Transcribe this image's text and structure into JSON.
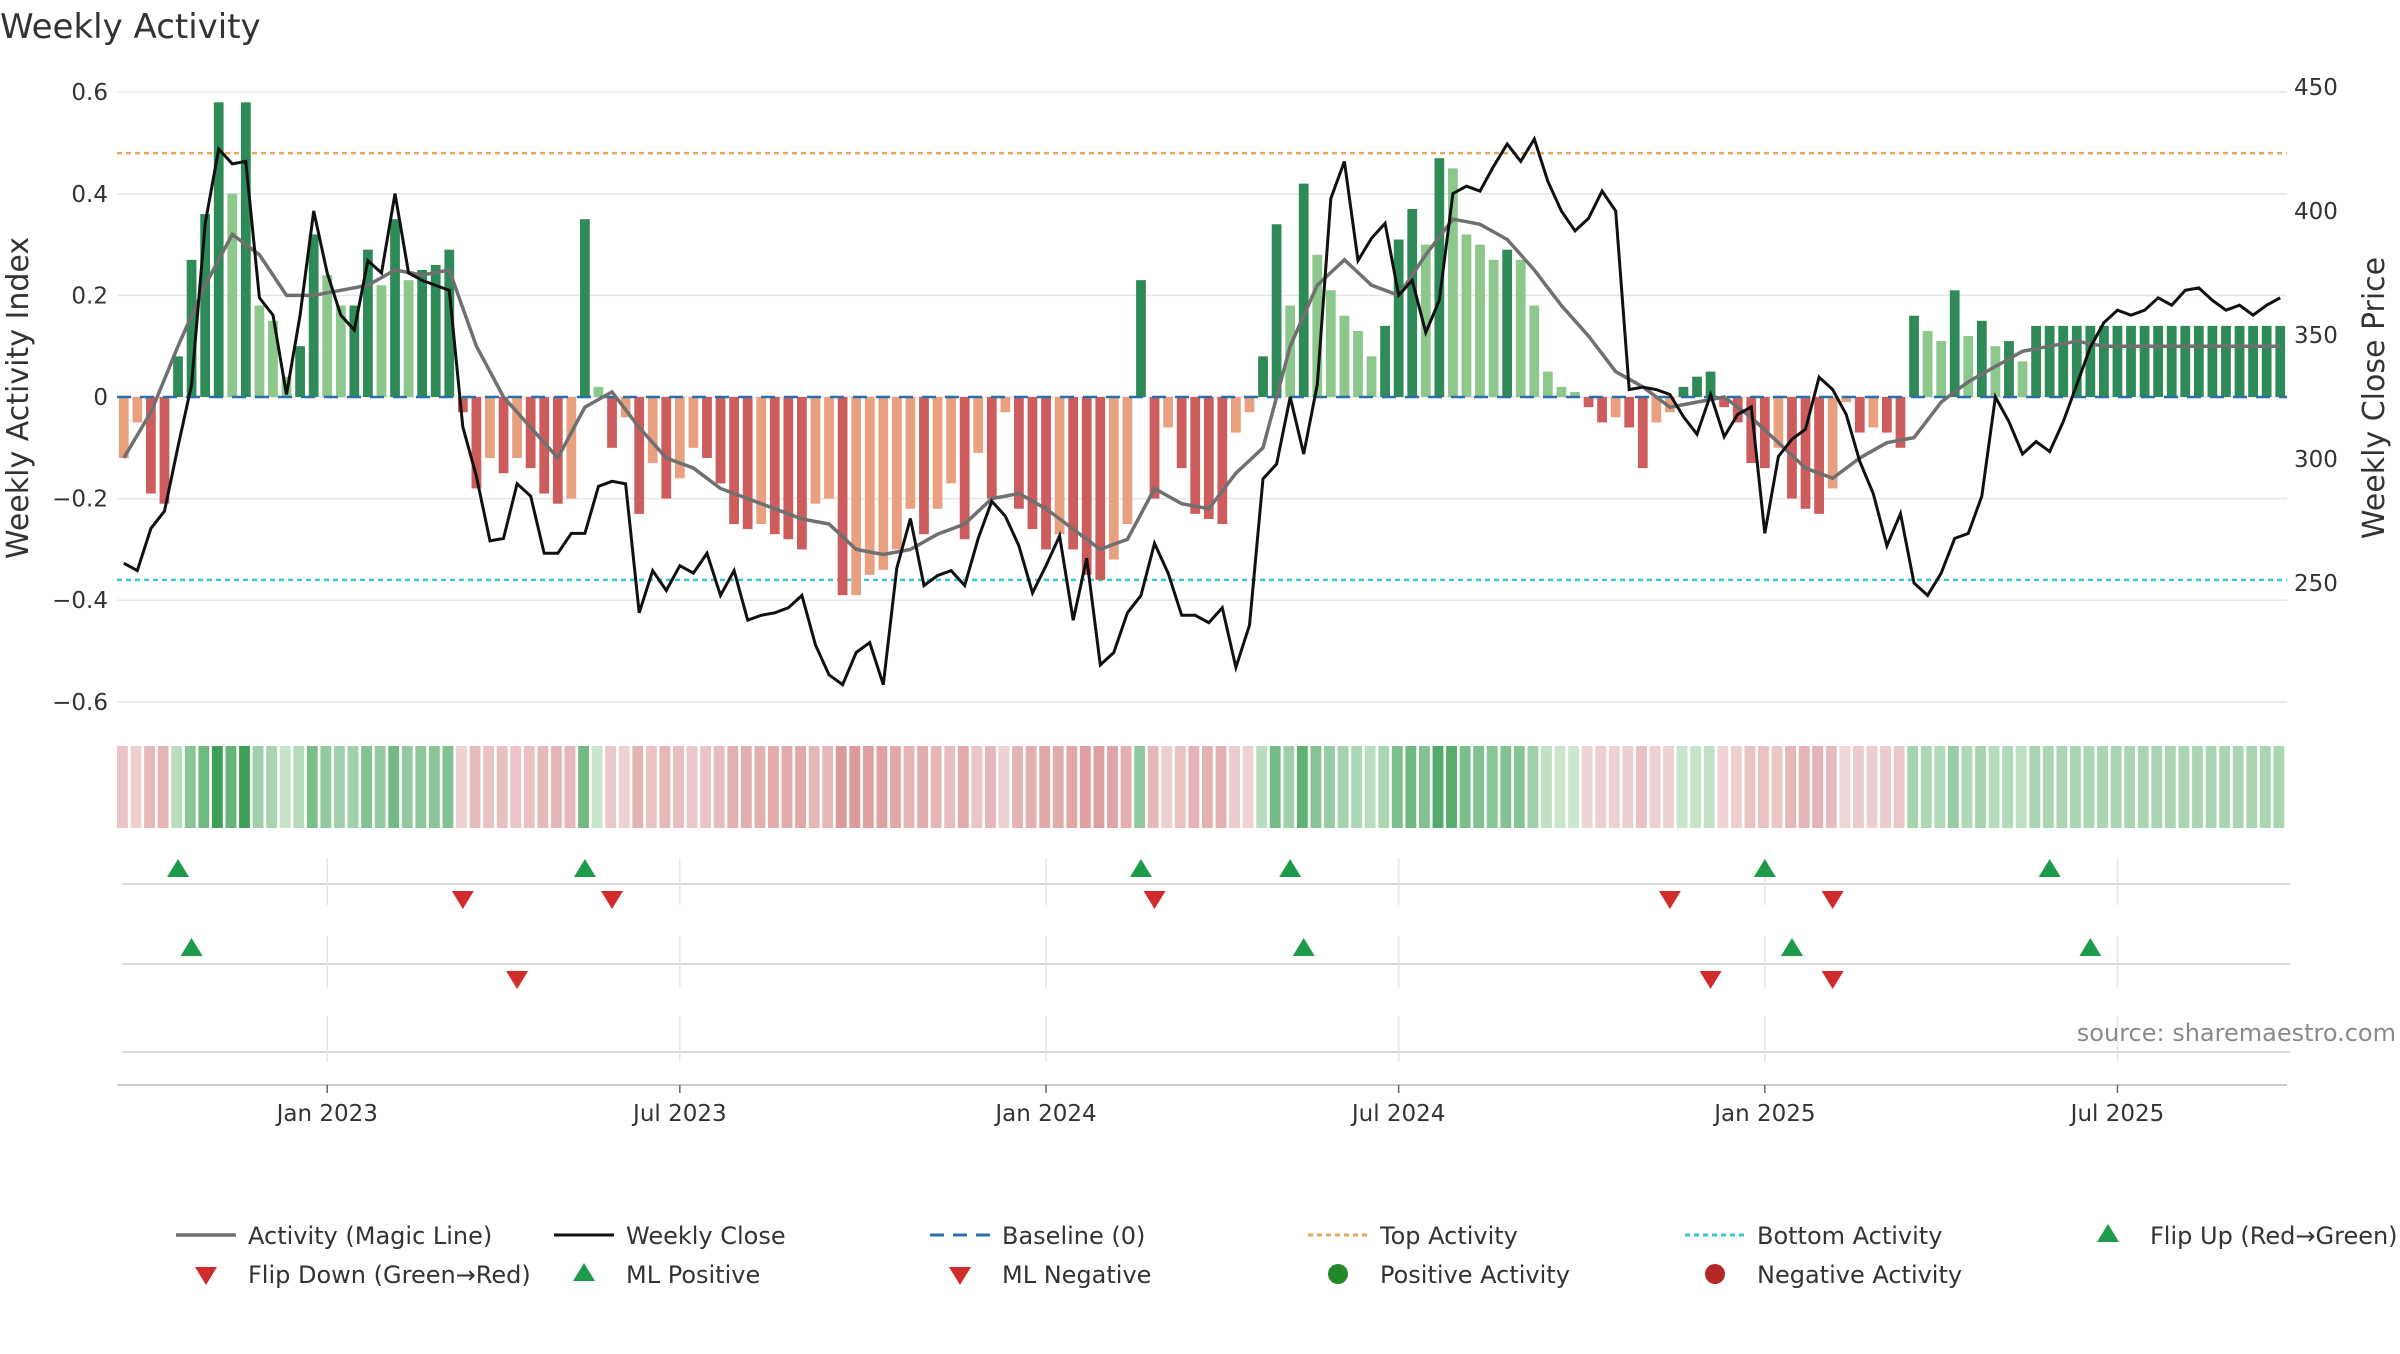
{
  "chart_data": {
    "type": "bar",
    "title": "Weekly Activity",
    "ylabel": "Weekly Activity Index",
    "y2label": "Weekly Close Price",
    "ylim": [
      -0.62,
      0.62
    ],
    "y2lim": [
      198,
      452
    ],
    "y_ticks": [
      -0.6,
      -0.4,
      -0.2,
      0,
      0.2,
      0.4,
      0.6
    ],
    "y_tick_labels": [
      "−0.6",
      "−0.4",
      "−0.2",
      "0",
      "0.2",
      "0.4",
      "0.6"
    ],
    "y2_ticks": [
      250,
      300,
      350,
      400,
      450
    ],
    "x_tick_labels": [
      "Jan 2023",
      "Jul 2023",
      "Jan 2024",
      "Jul 2024",
      "Jan 2025",
      "Jul 2025"
    ],
    "x_tick_weeks": [
      15,
      41,
      68,
      94,
      121,
      147
    ],
    "week_count": 160,
    "top_activity": 0.48,
    "bottom_activity": -0.36,
    "baseline": 0,
    "activity_anchors": [
      [
        0,
        -0.12
      ],
      [
        1,
        -0.05
      ],
      [
        2,
        -0.19
      ],
      [
        3,
        -0.21
      ],
      [
        4,
        0.08
      ],
      [
        5,
        0.27
      ],
      [
        6,
        0.36
      ],
      [
        7,
        0.58
      ],
      [
        8,
        0.4
      ],
      [
        9,
        0.58
      ],
      [
        10,
        0.18
      ],
      [
        11,
        0.15
      ],
      [
        12,
        0.04
      ],
      [
        13,
        0.1
      ],
      [
        14,
        0.32
      ],
      [
        15,
        0.24
      ],
      [
        16,
        0.18
      ],
      [
        17,
        0.18
      ],
      [
        18,
        0.29
      ],
      [
        19,
        0.22
      ],
      [
        20,
        0.35
      ],
      [
        21,
        0.23
      ],
      [
        22,
        0.25
      ],
      [
        23,
        0.26
      ],
      [
        24,
        0.29
      ],
      [
        25,
        -0.03
      ],
      [
        26,
        -0.18
      ],
      [
        27,
        -0.12
      ],
      [
        28,
        -0.15
      ],
      [
        29,
        -0.12
      ],
      [
        30,
        -0.14
      ],
      [
        31,
        -0.19
      ],
      [
        32,
        -0.21
      ],
      [
        33,
        -0.2
      ],
      [
        34,
        0.35
      ],
      [
        35,
        0.02
      ],
      [
        36,
        -0.1
      ],
      [
        37,
        -0.04
      ],
      [
        38,
        -0.23
      ],
      [
        39,
        -0.13
      ],
      [
        40,
        -0.2
      ],
      [
        41,
        -0.16
      ],
      [
        42,
        -0.1
      ],
      [
        43,
        -0.12
      ],
      [
        44,
        -0.17
      ],
      [
        45,
        -0.25
      ],
      [
        46,
        -0.26
      ],
      [
        47,
        -0.25
      ],
      [
        48,
        -0.27
      ],
      [
        49,
        -0.28
      ],
      [
        50,
        -0.3
      ],
      [
        51,
        -0.21
      ],
      [
        52,
        -0.2
      ],
      [
        53,
        -0.39
      ],
      [
        54,
        -0.39
      ],
      [
        55,
        -0.35
      ],
      [
        56,
        -0.34
      ],
      [
        57,
        -0.3
      ],
      [
        58,
        -0.22
      ],
      [
        59,
        -0.27
      ],
      [
        60,
        -0.22
      ],
      [
        61,
        -0.17
      ],
      [
        62,
        -0.28
      ],
      [
        63,
        -0.11
      ],
      [
        64,
        -0.2
      ],
      [
        65,
        -0.03
      ],
      [
        66,
        -0.22
      ],
      [
        67,
        -0.26
      ],
      [
        68,
        -0.3
      ],
      [
        69,
        -0.27
      ],
      [
        70,
        -0.3
      ],
      [
        71,
        -0.35
      ],
      [
        72,
        -0.36
      ],
      [
        73,
        -0.32
      ],
      [
        74,
        -0.25
      ],
      [
        75,
        0.23
      ],
      [
        76,
        -0.2
      ],
      [
        77,
        -0.06
      ],
      [
        78,
        -0.14
      ],
      [
        79,
        -0.23
      ],
      [
        80,
        -0.24
      ],
      [
        81,
        -0.25
      ],
      [
        82,
        -0.07
      ],
      [
        83,
        -0.03
      ],
      [
        84,
        0.08
      ],
      [
        85,
        0.34
      ],
      [
        86,
        0.18
      ],
      [
        87,
        0.42
      ],
      [
        88,
        0.28
      ],
      [
        89,
        0.21
      ],
      [
        90,
        0.16
      ],
      [
        91,
        0.13
      ],
      [
        92,
        0.08
      ],
      [
        93,
        0.14
      ],
      [
        94,
        0.31
      ],
      [
        95,
        0.37
      ],
      [
        96,
        0.3
      ],
      [
        97,
        0.47
      ],
      [
        98,
        0.45
      ],
      [
        99,
        0.32
      ],
      [
        100,
        0.3
      ],
      [
        101,
        0.27
      ],
      [
        102,
        0.29
      ],
      [
        103,
        0.27
      ],
      [
        104,
        0.18
      ],
      [
        105,
        0.05
      ],
      [
        106,
        0.02
      ],
      [
        107,
        0.01
      ],
      [
        108,
        -0.02
      ],
      [
        109,
        -0.05
      ],
      [
        110,
        -0.04
      ],
      [
        111,
        -0.06
      ],
      [
        112,
        -0.14
      ],
      [
        113,
        -0.05
      ],
      [
        114,
        -0.03
      ],
      [
        115,
        0.02
      ],
      [
        116,
        0.04
      ],
      [
        117,
        0.05
      ],
      [
        118,
        -0.02
      ],
      [
        119,
        -0.05
      ],
      [
        120,
        -0.13
      ],
      [
        121,
        -0.14
      ],
      [
        122,
        -0.1
      ],
      [
        123,
        -0.2
      ],
      [
        124,
        -0.22
      ],
      [
        125,
        -0.23
      ],
      [
        126,
        -0.18
      ],
      [
        127,
        -0.01
      ],
      [
        128,
        -0.07
      ],
      [
        129,
        -0.06
      ],
      [
        130,
        -0.07
      ],
      [
        131,
        -0.1
      ],
      [
        132,
        0.16
      ],
      [
        133,
        0.13
      ],
      [
        134,
        0.11
      ],
      [
        135,
        0.21
      ],
      [
        136,
        0.12
      ],
      [
        137,
        0.15
      ],
      [
        138,
        0.1
      ],
      [
        139,
        0.11
      ],
      [
        140,
        0.07
      ],
      [
        141,
        0.14
      ],
      [
        159,
        0.14
      ]
    ],
    "magic_line_anchors": [
      [
        0,
        -0.12
      ],
      [
        2,
        -0.03
      ],
      [
        4,
        0.1
      ],
      [
        6,
        0.22
      ],
      [
        8,
        0.32
      ],
      [
        10,
        0.28
      ],
      [
        12,
        0.2
      ],
      [
        14,
        0.2
      ],
      [
        16,
        0.21
      ],
      [
        18,
        0.22
      ],
      [
        20,
        0.25
      ],
      [
        22,
        0.24
      ],
      [
        24,
        0.25
      ],
      [
        26,
        0.1
      ],
      [
        28,
        0.0
      ],
      [
        30,
        -0.06
      ],
      [
        32,
        -0.12
      ],
      [
        34,
        -0.02
      ],
      [
        36,
        0.01
      ],
      [
        38,
        -0.06
      ],
      [
        40,
        -0.12
      ],
      [
        42,
        -0.14
      ],
      [
        44,
        -0.18
      ],
      [
        46,
        -0.2
      ],
      [
        48,
        -0.22
      ],
      [
        50,
        -0.24
      ],
      [
        52,
        -0.25
      ],
      [
        54,
        -0.3
      ],
      [
        56,
        -0.31
      ],
      [
        58,
        -0.3
      ],
      [
        60,
        -0.27
      ],
      [
        62,
        -0.25
      ],
      [
        64,
        -0.2
      ],
      [
        66,
        -0.19
      ],
      [
        68,
        -0.22
      ],
      [
        70,
        -0.26
      ],
      [
        72,
        -0.3
      ],
      [
        74,
        -0.28
      ],
      [
        76,
        -0.18
      ],
      [
        78,
        -0.21
      ],
      [
        80,
        -0.22
      ],
      [
        82,
        -0.15
      ],
      [
        84,
        -0.1
      ],
      [
        86,
        0.1
      ],
      [
        88,
        0.22
      ],
      [
        90,
        0.27
      ],
      [
        92,
        0.22
      ],
      [
        94,
        0.2
      ],
      [
        96,
        0.28
      ],
      [
        98,
        0.35
      ],
      [
        100,
        0.34
      ],
      [
        102,
        0.31
      ],
      [
        104,
        0.25
      ],
      [
        106,
        0.18
      ],
      [
        108,
        0.12
      ],
      [
        110,
        0.05
      ],
      [
        112,
        0.02
      ],
      [
        114,
        -0.02
      ],
      [
        116,
        -0.01
      ],
      [
        118,
        0.0
      ],
      [
        120,
        -0.04
      ],
      [
        122,
        -0.09
      ],
      [
        124,
        -0.14
      ],
      [
        126,
        -0.16
      ],
      [
        128,
        -0.12
      ],
      [
        130,
        -0.09
      ],
      [
        132,
        -0.08
      ],
      [
        134,
        -0.01
      ],
      [
        136,
        0.03
      ],
      [
        138,
        0.06
      ],
      [
        140,
        0.09
      ],
      [
        142,
        0.1
      ],
      [
        144,
        0.11
      ],
      [
        146,
        0.1
      ],
      [
        148,
        0.1
      ],
      [
        150,
        0.1
      ],
      [
        152,
        0.1
      ],
      [
        154,
        0.1
      ],
      [
        156,
        0.1
      ],
      [
        158,
        0.1
      ]
    ],
    "close_anchors": [
      [
        0,
        258
      ],
      [
        1,
        255
      ],
      [
        2,
        272
      ],
      [
        3,
        279
      ],
      [
        4,
        305
      ],
      [
        5,
        330
      ],
      [
        6,
        395
      ],
      [
        7,
        425
      ],
      [
        8,
        419
      ],
      [
        9,
        420
      ],
      [
        10,
        365
      ],
      [
        11,
        358
      ],
      [
        12,
        326
      ],
      [
        13,
        358
      ],
      [
        14,
        400
      ],
      [
        15,
        375
      ],
      [
        16,
        358
      ],
      [
        17,
        352
      ],
      [
        18,
        380
      ],
      [
        19,
        375
      ],
      [
        20,
        407
      ],
      [
        21,
        375
      ],
      [
        22,
        372
      ],
      [
        23,
        370
      ],
      [
        24,
        368
      ],
      [
        25,
        313
      ],
      [
        26,
        293
      ],
      [
        27,
        267
      ],
      [
        28,
        268
      ],
      [
        29,
        290
      ],
      [
        30,
        285
      ],
      [
        31,
        262
      ],
      [
        32,
        262
      ],
      [
        33,
        270
      ],
      [
        34,
        270
      ],
      [
        35,
        289
      ],
      [
        36,
        291
      ],
      [
        37,
        290
      ],
      [
        38,
        238
      ],
      [
        39,
        255
      ],
      [
        40,
        247
      ],
      [
        41,
        257
      ],
      [
        42,
        254
      ],
      [
        43,
        262
      ],
      [
        44,
        245
      ],
      [
        45,
        255
      ],
      [
        46,
        235
      ],
      [
        47,
        237
      ],
      [
        48,
        238
      ],
      [
        49,
        240
      ],
      [
        50,
        245
      ],
      [
        51,
        225
      ],
      [
        52,
        213
      ],
      [
        53,
        209
      ],
      [
        54,
        222
      ],
      [
        55,
        226
      ],
      [
        56,
        209
      ],
      [
        57,
        256
      ],
      [
        58,
        276
      ],
      [
        59,
        249
      ],
      [
        60,
        253
      ],
      [
        61,
        255
      ],
      [
        62,
        249
      ],
      [
        63,
        268
      ],
      [
        64,
        283
      ],
      [
        65,
        277
      ],
      [
        66,
        265
      ],
      [
        67,
        246
      ],
      [
        68,
        257
      ],
      [
        69,
        269
      ],
      [
        70,
        235
      ],
      [
        71,
        260
      ],
      [
        72,
        217
      ],
      [
        73,
        222
      ],
      [
        74,
        238
      ],
      [
        75,
        245
      ],
      [
        76,
        266
      ],
      [
        77,
        254
      ],
      [
        78,
        237
      ],
      [
        79,
        237
      ],
      [
        80,
        234
      ],
      [
        81,
        240
      ],
      [
        82,
        216
      ],
      [
        83,
        233
      ],
      [
        84,
        292
      ],
      [
        85,
        298
      ],
      [
        86,
        325
      ],
      [
        87,
        302
      ],
      [
        88,
        330
      ],
      [
        89,
        405
      ],
      [
        90,
        420
      ],
      [
        91,
        380
      ],
      [
        92,
        389
      ],
      [
        93,
        395
      ],
      [
        94,
        366
      ],
      [
        95,
        372
      ],
      [
        96,
        351
      ],
      [
        97,
        364
      ],
      [
        98,
        407
      ],
      [
        99,
        410
      ],
      [
        100,
        408
      ],
      [
        101,
        418
      ],
      [
        102,
        427
      ],
      [
        103,
        420
      ],
      [
        104,
        429
      ],
      [
        105,
        412
      ],
      [
        106,
        400
      ],
      [
        107,
        392
      ],
      [
        108,
        397
      ],
      [
        109,
        408
      ],
      [
        110,
        400
      ],
      [
        111,
        328
      ],
      [
        112,
        329
      ],
      [
        113,
        328
      ],
      [
        114,
        326
      ],
      [
        115,
        317
      ],
      [
        116,
        310
      ],
      [
        117,
        326
      ],
      [
        118,
        309
      ],
      [
        119,
        318
      ],
      [
        120,
        321
      ],
      [
        121,
        270
      ],
      [
        122,
        301
      ],
      [
        123,
        308
      ],
      [
        124,
        312
      ],
      [
        125,
        333
      ],
      [
        126,
        328
      ],
      [
        127,
        318
      ],
      [
        128,
        299
      ],
      [
        129,
        286
      ],
      [
        130,
        265
      ],
      [
        131,
        278
      ],
      [
        132,
        250
      ],
      [
        133,
        245
      ],
      [
        134,
        254
      ],
      [
        135,
        268
      ],
      [
        136,
        270
      ],
      [
        137,
        285
      ],
      [
        138,
        325
      ],
      [
        139,
        315
      ],
      [
        140,
        302
      ],
      [
        141,
        307
      ],
      [
        142,
        303
      ],
      [
        143,
        315
      ],
      [
        144,
        330
      ],
      [
        145,
        345
      ],
      [
        146,
        355
      ],
      [
        147,
        360
      ],
      [
        148,
        358
      ],
      [
        149,
        360
      ],
      [
        150,
        365
      ],
      [
        151,
        362
      ],
      [
        152,
        368
      ],
      [
        153,
        369
      ],
      [
        154,
        364
      ],
      [
        155,
        360
      ],
      [
        156,
        362
      ],
      [
        157,
        358
      ],
      [
        158,
        362
      ],
      [
        159,
        365
      ]
    ],
    "flip_up_weeks": [
      4,
      34,
      75,
      86,
      121,
      142
    ],
    "flip_down_weeks": [
      25,
      36,
      76,
      114,
      126
    ],
    "ml_positive_weeks": [
      5,
      87,
      123,
      145
    ],
    "ml_negative_weeks": [
      29,
      117,
      126
    ],
    "source": "source: sharemaestro.com",
    "legend": [
      "Activity (Magic Line)",
      "Weekly Close",
      "Baseline (0)",
      "Top Activity",
      "Bottom Activity",
      "Flip Up (Red→Green)",
      "Flip Down (Green→Red)",
      "ML Positive",
      "ML Negative",
      "Positive Activity",
      "Negative Activity"
    ]
  },
  "colors": {
    "pos_dark": "#2e8b57",
    "pos_light": "#8cc78c",
    "neg_dark": "#cd5c5c",
    "neg_light": "#e9a07f",
    "magic_line": "#707070",
    "close": "#111111",
    "baseline": "#2a6fa8",
    "top": "#e4a85e",
    "bottom": "#3cc6d4",
    "up_marker": "#1e9b4a",
    "down_marker": "#d22b2b",
    "pos_dot": "#22882a",
    "neg_dot": "#b52828",
    "grid": "#e6e6e6",
    "axis": "#cccccc"
  }
}
